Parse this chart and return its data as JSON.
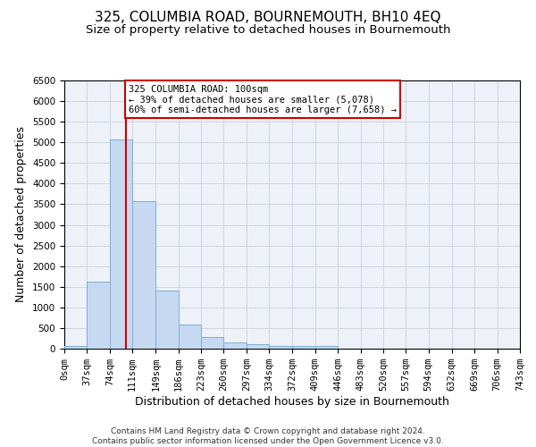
{
  "title": "325, COLUMBIA ROAD, BOURNEMOUTH, BH10 4EQ",
  "subtitle": "Size of property relative to detached houses in Bournemouth",
  "xlabel": "Distribution of detached houses by size in Bournemouth",
  "ylabel": "Number of detached properties",
  "footer_line1": "Contains HM Land Registry data © Crown copyright and database right 2024.",
  "footer_line2": "Contains public sector information licensed under the Open Government Licence v3.0.",
  "bin_edges": [
    0,
    37,
    74,
    111,
    149,
    186,
    223,
    260,
    297,
    334,
    372,
    409,
    446,
    483,
    520,
    557,
    594,
    632,
    669,
    706,
    743
  ],
  "bar_heights": [
    70,
    1620,
    5080,
    3570,
    1410,
    590,
    290,
    145,
    105,
    70,
    55,
    70,
    0,
    0,
    0,
    0,
    0,
    0,
    0,
    0
  ],
  "bar_color": "#c6d9f0",
  "bar_edge_color": "#7bafd4",
  "grid_color": "#c8d0e0",
  "vline_x": 100,
  "vline_color": "#cc0000",
  "annotation_text": "325 COLUMBIA ROAD: 100sqm\n← 39% of detached houses are smaller (5,078)\n60% of semi-detached houses are larger (7,658) →",
  "annotation_box_color": "#cc0000",
  "ylim": [
    0,
    6500
  ],
  "yticks": [
    0,
    500,
    1000,
    1500,
    2000,
    2500,
    3000,
    3500,
    4000,
    4500,
    5000,
    5500,
    6000,
    6500
  ],
  "background_color": "#eef2f8",
  "title_fontsize": 11,
  "subtitle_fontsize": 9.5,
  "label_fontsize": 9,
  "tick_fontsize": 7.5,
  "footer_fontsize": 6.5
}
